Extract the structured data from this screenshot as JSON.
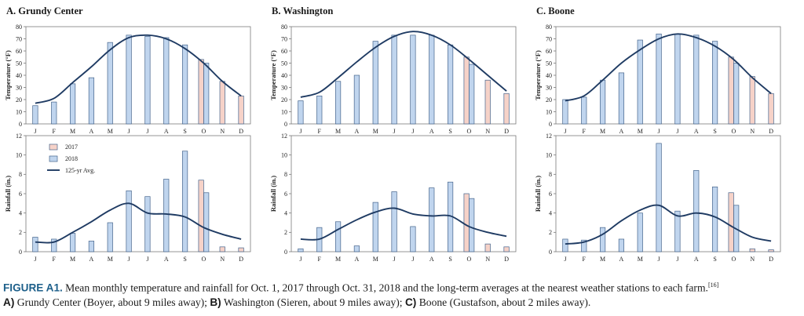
{
  "months": [
    "J",
    "F",
    "M",
    "A",
    "M",
    "J",
    "J",
    "A",
    "S",
    "O",
    "N",
    "D"
  ],
  "colors": {
    "bar_2017": "#f6d2c8",
    "bar_2018": "#c0d5ee",
    "bar_stroke": "#45648c",
    "avg_line": "#1f3b63",
    "axis": "#7a7a7a"
  },
  "legend": {
    "label_2017": "2017",
    "label_2018": "2018",
    "label_avg": "125-yr Avg."
  },
  "axes": {
    "temp_ylabel": "Temperature (°F)",
    "rain_ylabel": "Rainfall (in.)",
    "temp_ylim": [
      0,
      80
    ],
    "temp_step": 10,
    "rain_ylim": [
      0,
      12
    ],
    "rain_step": 2
  },
  "chart_data": [
    {
      "type": "bar",
      "title": "A. Grundy Center",
      "metric": "temperature",
      "categories": [
        "J",
        "F",
        "M",
        "A",
        "M",
        "J",
        "J",
        "A",
        "S",
        "O",
        "N",
        "D"
      ],
      "series": [
        {
          "name": "2017",
          "values": [
            null,
            null,
            null,
            null,
            null,
            null,
            null,
            null,
            null,
            53,
            35,
            23
          ]
        },
        {
          "name": "2018",
          "values": [
            15,
            18,
            33,
            38,
            67,
            73,
            72,
            71,
            65,
            50,
            null,
            null
          ]
        },
        {
          "name": "125-yr Avg.",
          "type": "line",
          "values": [
            17,
            21,
            34,
            47,
            61,
            71,
            73,
            70,
            62,
            50,
            35,
            23
          ]
        }
      ],
      "ylabel": "Temperature (°F)",
      "ylim": [
        0,
        80
      ]
    },
    {
      "type": "bar",
      "title": "B. Washington",
      "metric": "temperature",
      "categories": [
        "J",
        "F",
        "M",
        "A",
        "M",
        "J",
        "J",
        "A",
        "S",
        "O",
        "N",
        "D"
      ],
      "series": [
        {
          "name": "2017",
          "values": [
            null,
            null,
            null,
            null,
            null,
            null,
            null,
            null,
            null,
            55,
            36,
            25
          ]
        },
        {
          "name": "2018",
          "values": [
            19,
            23,
            35,
            40,
            68,
            73,
            73,
            73,
            65,
            49,
            null,
            null
          ]
        },
        {
          "name": "125-yr Avg.",
          "type": "line",
          "values": [
            22,
            26,
            38,
            51,
            63,
            72,
            76,
            73,
            65,
            53,
            40,
            27
          ]
        }
      ],
      "ylabel": "Temperature (°F)",
      "ylim": [
        0,
        80
      ]
    },
    {
      "type": "bar",
      "title": "C. Boone",
      "metric": "temperature",
      "categories": [
        "J",
        "F",
        "M",
        "A",
        "M",
        "J",
        "J",
        "A",
        "S",
        "O",
        "N",
        "D"
      ],
      "series": [
        {
          "name": "2017",
          "values": [
            null,
            null,
            null,
            null,
            null,
            null,
            null,
            null,
            null,
            55,
            39,
            25
          ]
        },
        {
          "name": "2018",
          "values": [
            20,
            22,
            36,
            42,
            69,
            74,
            74,
            73,
            68,
            50,
            null,
            null
          ]
        },
        {
          "name": "125-yr Avg.",
          "type": "line",
          "values": [
            19,
            23,
            36,
            50,
            61,
            70,
            74,
            71,
            64,
            53,
            38,
            25
          ]
        }
      ],
      "ylabel": "Temperature (°F)",
      "ylim": [
        0,
        80
      ]
    },
    {
      "type": "bar",
      "title": "",
      "metric": "rainfall",
      "categories": [
        "J",
        "F",
        "M",
        "A",
        "M",
        "J",
        "J",
        "A",
        "S",
        "O",
        "N",
        "D"
      ],
      "series": [
        {
          "name": "2017",
          "values": [
            null,
            null,
            null,
            null,
            null,
            null,
            null,
            null,
            null,
            7.4,
            0.5,
            0.4
          ]
        },
        {
          "name": "2018",
          "values": [
            1.5,
            1.3,
            1.9,
            1.1,
            3.0,
            6.3,
            5.7,
            7.5,
            10.4,
            6.1,
            null,
            null
          ]
        },
        {
          "name": "125-yr Avg.",
          "type": "line",
          "values": [
            1.0,
            1.0,
            2.0,
            3.1,
            4.3,
            5.0,
            4.0,
            3.9,
            3.6,
            2.5,
            1.8,
            1.3
          ]
        }
      ],
      "ylabel": "Rainfall (in.)",
      "ylim": [
        0,
        12
      ],
      "legend": "top-left"
    },
    {
      "type": "bar",
      "title": "",
      "metric": "rainfall",
      "categories": [
        "J",
        "F",
        "M",
        "A",
        "M",
        "J",
        "J",
        "A",
        "S",
        "O",
        "N",
        "D"
      ],
      "series": [
        {
          "name": "2017",
          "values": [
            null,
            null,
            null,
            null,
            null,
            null,
            null,
            null,
            null,
            6.0,
            0.8,
            0.5
          ]
        },
        {
          "name": "2018",
          "values": [
            0.3,
            2.5,
            3.1,
            0.6,
            5.1,
            6.2,
            2.6,
            6.6,
            7.2,
            5.5,
            null,
            null
          ]
        },
        {
          "name": "125-yr Avg.",
          "type": "line",
          "values": [
            1.3,
            1.3,
            2.3,
            3.3,
            4.1,
            4.5,
            3.9,
            3.7,
            3.7,
            2.6,
            2.0,
            1.6
          ]
        }
      ],
      "ylabel": "Rainfall (in.)",
      "ylim": [
        0,
        12
      ]
    },
    {
      "type": "bar",
      "title": "",
      "metric": "rainfall",
      "categories": [
        "J",
        "F",
        "M",
        "A",
        "M",
        "J",
        "J",
        "A",
        "S",
        "O",
        "N",
        "D"
      ],
      "series": [
        {
          "name": "2017",
          "values": [
            null,
            null,
            null,
            null,
            null,
            null,
            null,
            null,
            null,
            6.1,
            0.3,
            0.2
          ]
        },
        {
          "name": "2018",
          "values": [
            1.3,
            1.2,
            2.5,
            1.3,
            4.0,
            11.2,
            4.2,
            8.4,
            6.7,
            4.8,
            null,
            null
          ]
        },
        {
          "name": "125-yr Avg.",
          "type": "line",
          "values": [
            0.8,
            1.0,
            1.8,
            3.2,
            4.3,
            4.8,
            3.7,
            4.0,
            3.6,
            2.5,
            1.5,
            1.1
          ]
        }
      ],
      "ylabel": "Rainfall (in.)",
      "ylim": [
        0,
        12
      ]
    }
  ],
  "caption": {
    "figure_label": "FIGURE A1.",
    "text": " Mean monthly temperature and rainfall for Oct. 1, 2017 through Oct. 31, 2018 and the long-term averages at the nearest weather stations to each farm.",
    "ref": "[16]",
    "part_a_label": "A)",
    "part_a_text": " Grundy Center (Boyer, about 9 miles away); ",
    "part_b_label": "B)",
    "part_b_text": " Washington (Sieren, about 9 miles away); ",
    "part_c_label": "C)",
    "part_c_text": " Boone (Gustafson, about 2 miles away)."
  }
}
